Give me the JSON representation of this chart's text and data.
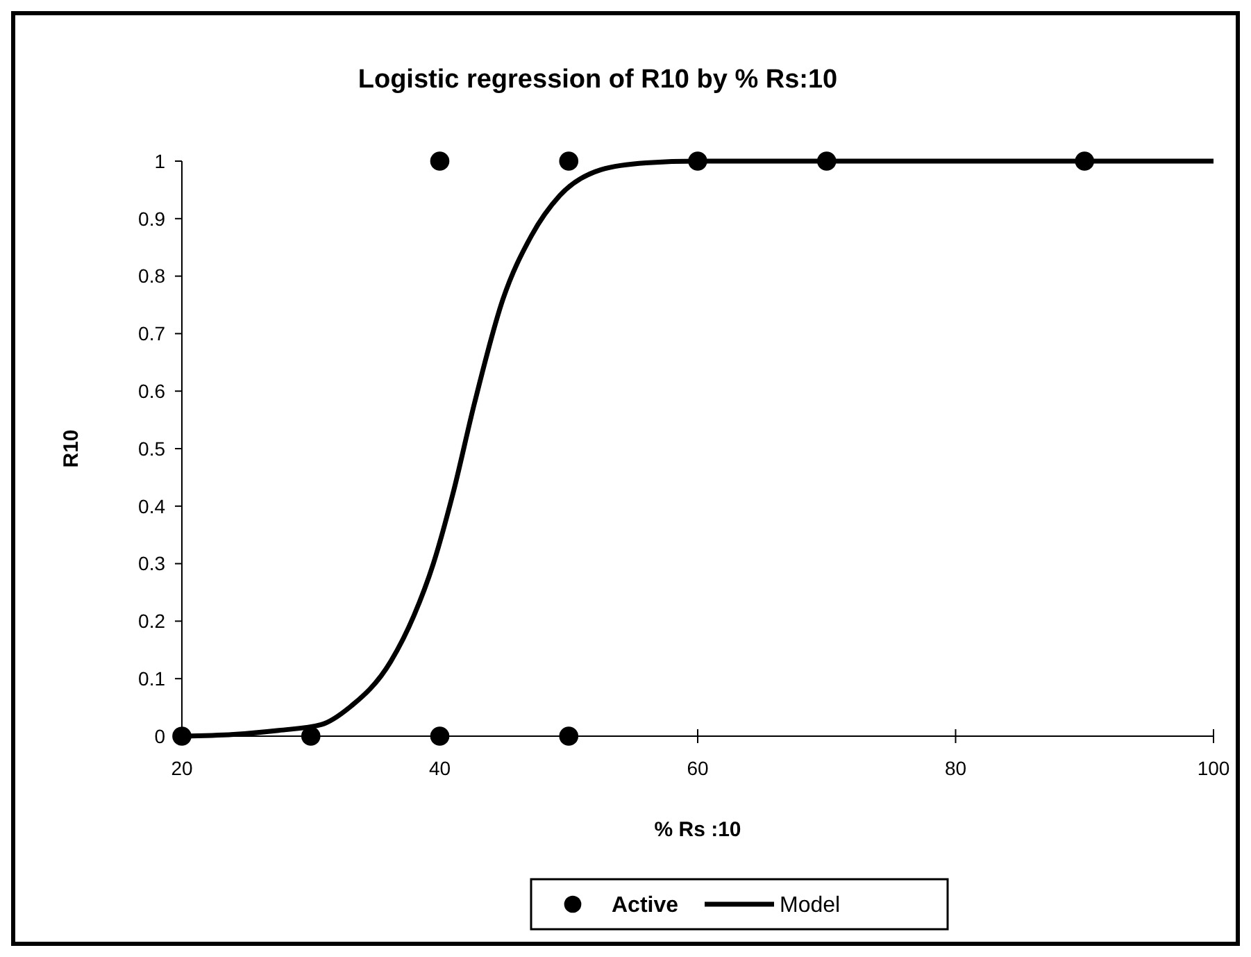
{
  "chart_data": {
    "type": "scatter",
    "title": "Logistic regression of R10 by % Rs:10",
    "xlabel": "% Rs :10",
    "ylabel": "R10",
    "series": [
      {
        "name": "Active",
        "color": "#000000",
        "marker": "circle",
        "x": [
          20,
          30,
          40,
          50,
          40,
          50,
          60,
          70,
          90
        ],
        "values": [
          0,
          0,
          0,
          0,
          1,
          1,
          1,
          1,
          1
        ]
      },
      {
        "name": "Model",
        "type": "line",
        "color": "#000000",
        "marker": "none",
        "line_style": "solid",
        "x": [
          20,
          24,
          27.5,
          30.8,
          33,
          36.2,
          38,
          39.5,
          41,
          42.7,
          44.9,
          47.1,
          49.3,
          52.5,
          56,
          60,
          70,
          80,
          90,
          100
        ],
        "values": [
          0,
          0.003,
          0.01,
          0.02,
          0.05,
          0.13,
          0.21,
          0.3,
          0.42,
          0.58,
          0.76,
          0.87,
          0.94,
          0.985,
          0.997,
          1,
          1,
          1,
          1,
          1
        ]
      }
    ],
    "xlim": [
      20,
      100
    ],
    "xticks": [
      20,
      40,
      60,
      80,
      100
    ],
    "ylim": [
      0,
      1
    ],
    "yticks": [
      0,
      0.1,
      0.2,
      0.3,
      0.4,
      0.5,
      0.6,
      0.7,
      0.8,
      0.9,
      1
    ],
    "grid": false,
    "legend": "bottom"
  }
}
